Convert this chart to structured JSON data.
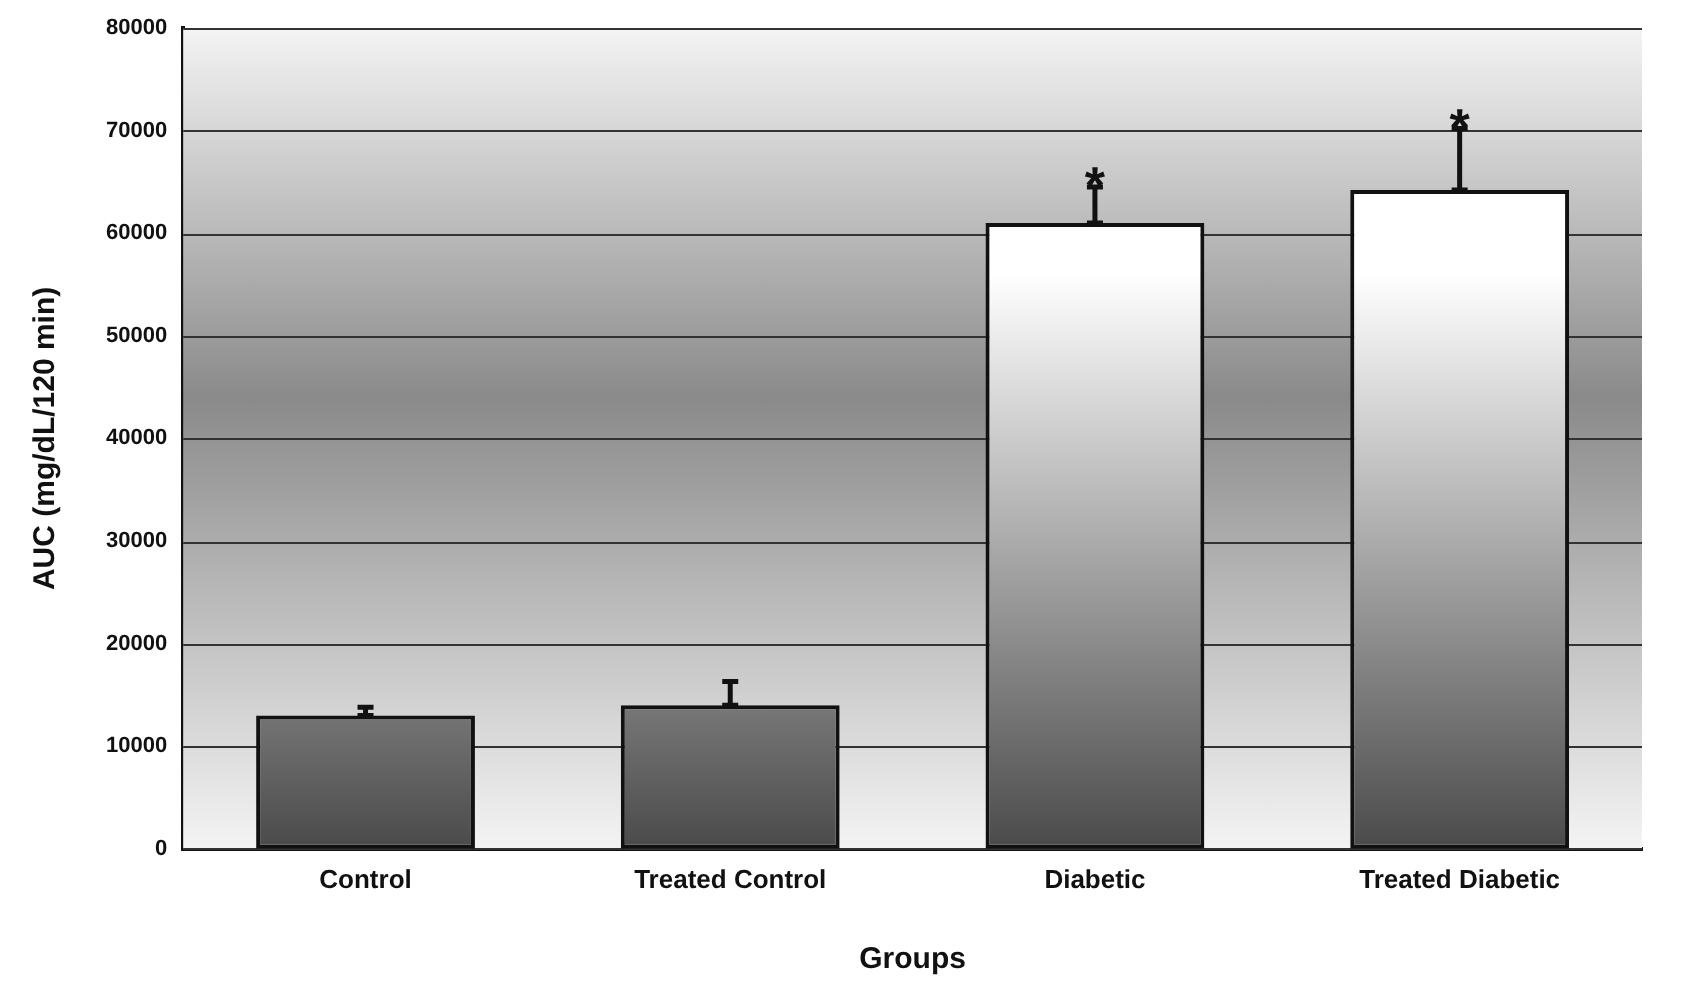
{
  "chart_data": {
    "type": "bar",
    "xlabel": "Groups",
    "ylabel": "AUC (mg/dL/120 min)",
    "categories": [
      "Control",
      "Treated Control",
      "Diabetic",
      "Treated Diabetic"
    ],
    "values": [
      13000,
      14000,
      61000,
      64200
    ],
    "errors": [
      [
        13000,
        13800
      ],
      [
        14000,
        16300
      ],
      [
        61000,
        64500
      ],
      [
        64200,
        70200
      ]
    ],
    "color": "#4a4a4a",
    "ylim": [
      0,
      80000
    ],
    "yticks": [
      0,
      10000,
      20000,
      30000,
      40000,
      50000,
      60000,
      70000,
      80000
    ],
    "grid": "y",
    "legend": false,
    "annotations": [
      {
        "text": "*",
        "x": "Diabetic",
        "y": 64500
      },
      {
        "text": "*",
        "x": "Treated Diabetic",
        "y": 70200
      }
    ]
  }
}
